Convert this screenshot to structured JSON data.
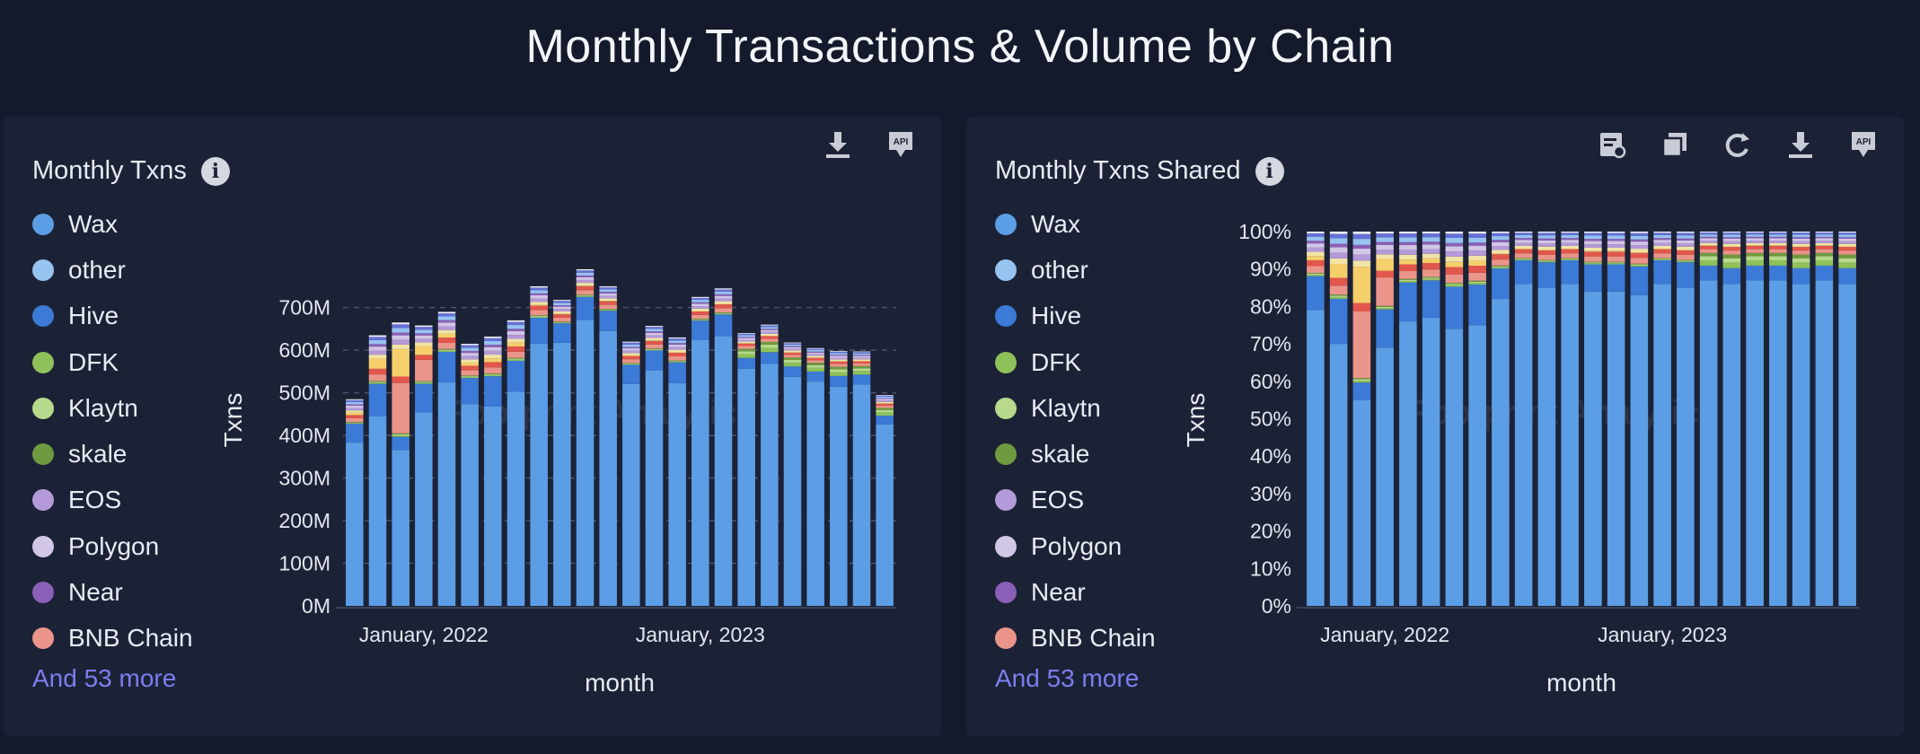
{
  "page_title": "Monthly Transactions & Volume by Chain",
  "watermark": "Footprint Analytics",
  "legend": [
    {
      "name": "Wax",
      "color": "#5b9ee6"
    },
    {
      "name": "other",
      "color": "#97c3f0"
    },
    {
      "name": "Hive",
      "color": "#3b7ad6"
    },
    {
      "name": "DFK",
      "color": "#8fc15a"
    },
    {
      "name": "Klaytn",
      "color": "#b6d98c"
    },
    {
      "name": "skale",
      "color": "#6f9a3f"
    },
    {
      "name": "EOS",
      "color": "#b49ad8"
    },
    {
      "name": "Polygon",
      "color": "#d2c6e6"
    },
    {
      "name": "Near",
      "color": "#8a5fb8"
    },
    {
      "name": "BNB Chain",
      "color": "#eb958a"
    }
  ],
  "hidden_series_colors": [
    "#e2574c",
    "#f5cf6b",
    "#f2e4a6",
    "#6571d9",
    "#f2f2f2"
  ],
  "legend_more": "And 53 more",
  "panels": [
    {
      "title": "Monthly Txns",
      "tools": [
        "download-icon",
        "api-icon"
      ]
    },
    {
      "title": "Monthly Txns Shared",
      "tools": [
        "sql-icon",
        "duplicate-icon",
        "refresh-icon",
        "download-icon",
        "api-icon"
      ]
    }
  ],
  "chart_data": [
    {
      "type": "bar",
      "stacked": true,
      "title": "Monthly Txns",
      "xlabel": "month",
      "ylabel": "Txns",
      "x_tick_labels": [
        "January, 2022",
        "January, 2023"
      ],
      "x_tick_month_index": [
        3,
        15
      ],
      "y_ticks": [
        "0M",
        "100M",
        "200M",
        "300M",
        "400M",
        "500M",
        "600M",
        "700M"
      ],
      "ylim": [
        0,
        780
      ],
      "unit": "M",
      "months": 24,
      "totals": [
        485,
        635,
        665,
        658,
        690,
        615,
        632,
        670,
        750,
        718,
        790,
        750,
        620,
        657,
        630,
        725,
        745,
        640,
        660,
        618,
        605,
        598,
        597,
        495
      ],
      "wax_share": [
        0.79,
        0.7,
        0.55,
        0.69,
        0.76,
        0.77,
        0.74,
        0.75,
        0.82,
        0.86,
        0.85,
        0.86,
        0.84,
        0.84,
        0.83,
        0.86,
        0.85,
        0.87,
        0.86,
        0.87,
        0.87,
        0.86,
        0.87,
        0.86
      ]
    },
    {
      "type": "bar",
      "stacked": true,
      "normalized": true,
      "title": "Monthly Txns Shared",
      "xlabel": "month",
      "ylabel": "Txns",
      "x_tick_labels": [
        "January, 2022",
        "January, 2023"
      ],
      "x_tick_month_index": [
        3,
        15
      ],
      "y_ticks": [
        "0%",
        "10%",
        "20%",
        "30%",
        "40%",
        "50%",
        "60%",
        "70%",
        "80%",
        "90%",
        "100%"
      ],
      "ylim": [
        0,
        100
      ],
      "unit": "%"
    }
  ]
}
